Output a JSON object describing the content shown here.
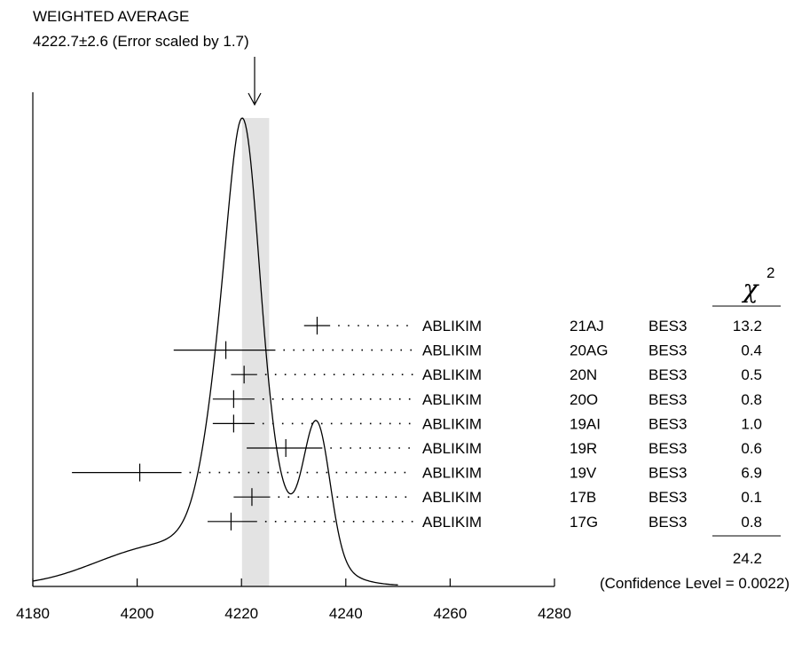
{
  "chart_data": {
    "type": "ideogram",
    "title": "WEIGHTED AVERAGE",
    "subtitle": "4222.7±2.6 (Error scaled by 1.7)",
    "average": {
      "value": 4222.7,
      "error": 2.6
    },
    "chi2_header": "χ",
    "chi2_superscript": "2",
    "xlim": [
      4180,
      4280
    ],
    "x_ticks": [
      4180,
      4200,
      4220,
      4240,
      4260,
      4280
    ],
    "x_tick_labels": [
      "4180",
      "4200",
      "4220",
      "4240",
      "4260",
      "4280"
    ],
    "measurements": [
      {
        "value": 4234.5,
        "err_low": 2.5,
        "err_high": 2.5,
        "author": "ABLIKIM",
        "ref": "21AJ",
        "experiment": "BES3",
        "chi2": "13.2"
      },
      {
        "value": 4217.0,
        "err_low": 10.0,
        "err_high": 9.5,
        "author": "ABLIKIM",
        "ref": "20AG",
        "experiment": "BES3",
        "chi2": "0.4"
      },
      {
        "value": 4220.5,
        "err_low": 2.5,
        "err_high": 2.5,
        "author": "ABLIKIM",
        "ref": "20N",
        "experiment": "BES3",
        "chi2": "0.5"
      },
      {
        "value": 4218.5,
        "err_low": 4.0,
        "err_high": 4.0,
        "author": "ABLIKIM",
        "ref": "20O",
        "experiment": "BES3",
        "chi2": "0.8"
      },
      {
        "value": 4218.5,
        "err_low": 4.0,
        "err_high": 4.0,
        "author": "ABLIKIM",
        "ref": "19AI",
        "experiment": "BES3",
        "chi2": "1.0"
      },
      {
        "value": 4228.5,
        "err_low": 7.5,
        "err_high": 7.0,
        "author": "ABLIKIM",
        "ref": "19R",
        "experiment": "BES3",
        "chi2": "0.6"
      },
      {
        "value": 4200.5,
        "err_low": 13.0,
        "err_high": 8.0,
        "author": "ABLIKIM",
        "ref": "19V",
        "experiment": "BES3",
        "chi2": "6.9"
      },
      {
        "value": 4222.0,
        "err_low": 3.5,
        "err_high": 3.5,
        "author": "ABLIKIM",
        "ref": "17B",
        "experiment": "BES3",
        "chi2": "0.1"
      },
      {
        "value": 4218.0,
        "err_low": 4.5,
        "err_high": 5.0,
        "author": "ABLIKIM",
        "ref": "17G",
        "experiment": "BES3",
        "chi2": "0.8"
      }
    ],
    "chi2_total": "24.2",
    "confidence_level_text": "(Confidence Level = 0.0022)"
  }
}
